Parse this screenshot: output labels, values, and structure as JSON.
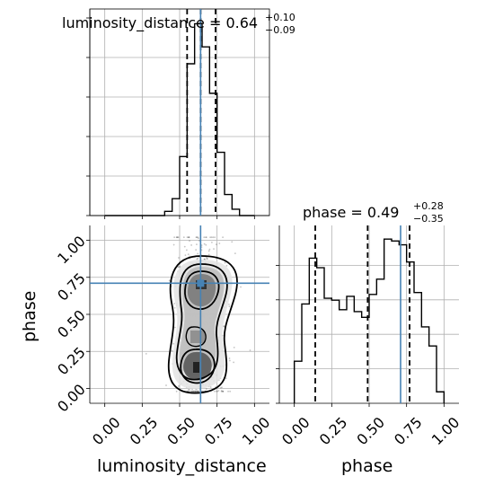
{
  "chart_data": {
    "type": "corner",
    "parameters": [
      "luminosity_distance",
      "phase"
    ],
    "truth": {
      "luminosity_distance": 0.64,
      "phase": 0.71
    },
    "colors": {
      "truth": "#4682b4",
      "hist": "#000000",
      "grid": "#b0b0b0"
    },
    "grid": true,
    "panels": {
      "luminosity_distance_hist": {
        "type": "step-histogram",
        "title": "luminosity_distance = 0.64",
        "title_value": "0.64",
        "title_plus": "+0.10",
        "title_minus": "−0.09",
        "xlim": [
          -0.1,
          1.1
        ],
        "bin_edges": [
          0.0,
          0.05,
          0.1,
          0.15,
          0.2,
          0.25,
          0.3,
          0.35,
          0.4,
          0.45,
          0.5,
          0.55,
          0.6,
          0.65,
          0.7,
          0.75,
          0.8,
          0.85,
          0.9,
          0.95,
          1.0
        ],
        "counts": [
          0,
          0,
          0,
          0,
          0,
          0,
          0,
          0,
          2,
          8,
          28,
          72,
          91,
          80,
          58,
          30,
          10,
          3,
          0,
          0
        ],
        "quantiles": [
          0.55,
          0.64,
          0.74
        ]
      },
      "phase_hist": {
        "type": "step-histogram",
        "title": "phase = 0.49",
        "title_value": "0.49",
        "title_plus": "+0.28",
        "title_minus": "−0.35",
        "xlim": [
          -0.1,
          1.1
        ],
        "xticks": [
          "0.00",
          "0.25",
          "0.50",
          "0.75",
          "1.00"
        ],
        "xtick_values": [
          0,
          0.25,
          0.5,
          0.75,
          1.0
        ],
        "xlabel": "phase",
        "bin_edges": [
          0.0,
          0.05,
          0.1,
          0.15,
          0.2,
          0.25,
          0.3,
          0.35,
          0.4,
          0.45,
          0.5,
          0.55,
          0.6,
          0.65,
          0.7,
          0.75,
          0.8,
          0.85,
          0.9,
          0.95,
          1.0
        ],
        "counts": [
          22,
          52,
          76,
          71,
          55,
          54,
          49,
          56,
          48,
          45,
          57,
          65,
          86,
          85,
          83,
          74,
          58,
          40,
          30,
          6
        ],
        "quantiles": [
          0.14,
          0.49,
          0.77
        ]
      },
      "joint": {
        "type": "2d-contour",
        "xlim": [
          -0.1,
          1.1
        ],
        "ylim": [
          -0.1,
          1.1
        ],
        "xticks": [
          "0.00",
          "0.25",
          "0.50",
          "0.75",
          "1.00"
        ],
        "xtick_values": [
          0,
          0.25,
          0.5,
          0.75,
          1.0
        ],
        "yticks": [
          "0.00",
          "0.25",
          "0.50",
          "0.75",
          "1.00"
        ],
        "ytick_values": [
          0,
          0.25,
          0.5,
          0.75,
          1.0
        ],
        "xlabel": "luminosity_distance",
        "ylabel": "phase"
      }
    }
  }
}
